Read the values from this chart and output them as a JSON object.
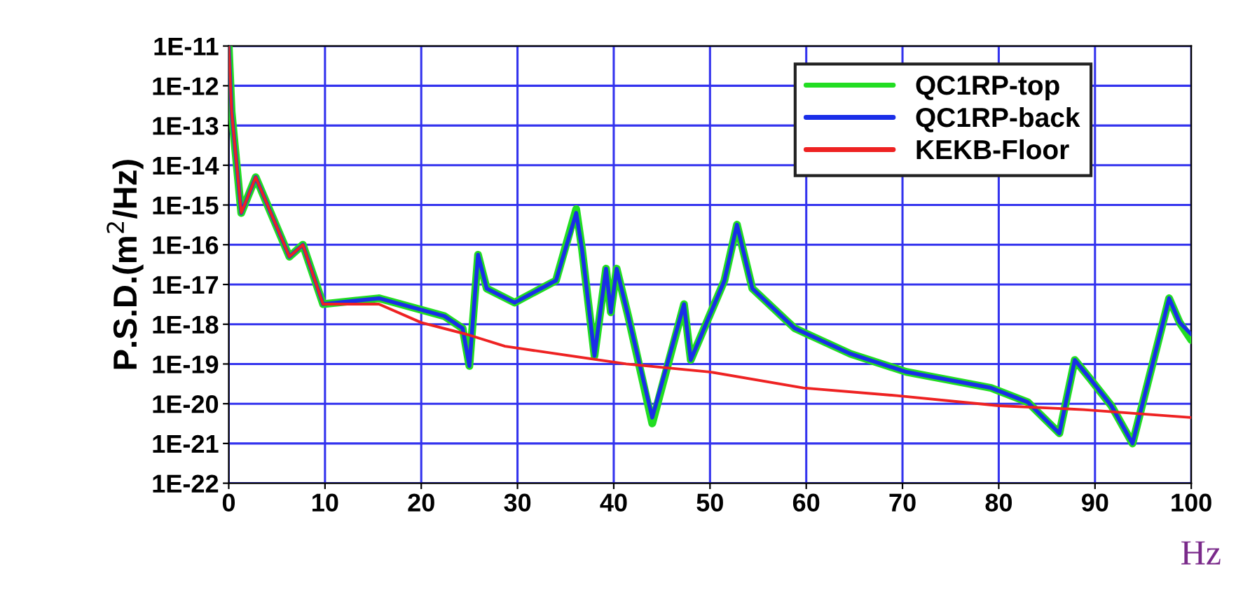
{
  "chart_data": {
    "type": "line",
    "xlabel": "Hz",
    "ylabel": "P.S.D.(m$^{2}$/Hz)",
    "log": "y",
    "xlim": [
      0,
      100
    ],
    "xticks": [
      0,
      10,
      20,
      30,
      40,
      50,
      60,
      70,
      80,
      90,
      100
    ],
    "ylim": [
      1e-22,
      1e-11
    ],
    "yticks": [
      {
        "value": 1e-11,
        "label": "1E-11"
      },
      {
        "value": 1e-12,
        "label": "1E-12"
      },
      {
        "value": 1e-13,
        "label": "1E-13"
      },
      {
        "value": 1e-14,
        "label": "1E-14"
      },
      {
        "value": 1e-15,
        "label": "1E-15"
      },
      {
        "value": 1e-16,
        "label": "1E-16"
      },
      {
        "value": 1e-17,
        "label": "1E-17"
      },
      {
        "value": 1e-18,
        "label": "1E-18"
      },
      {
        "value": 1e-19,
        "label": "1E-19"
      },
      {
        "value": 1e-20,
        "label": "1E-20"
      },
      {
        "value": 1e-21,
        "label": "1E-21"
      },
      {
        "value": 1e-22,
        "label": "1E-22"
      }
    ],
    "grid": true,
    "legend": "top right",
    "marker": "none",
    "line_style": "solid",
    "series": [
      {
        "name": "QC1RP-top",
        "color": "#22dd22",
        "x": [
          0,
          0.3,
          1.3,
          2.8,
          6.3,
          7.7,
          9.8,
          15.6,
          22.4,
          24.3,
          25,
          25.9,
          26.8,
          29.7,
          34,
          36.1,
          36.7,
          38,
          39.2,
          39.7,
          40.3,
          41.5,
          44,
          47.3,
          48,
          51.5,
          52.8,
          54.4,
          58.8,
          64.6,
          70.4,
          79.2,
          83,
          86.3,
          87.9,
          89.4,
          91.7,
          93.9,
          97.7,
          98.8,
          100
        ],
        "values": [
          1e-11,
          2.2e-13,
          6.3e-16,
          5e-15,
          5e-17,
          1e-16,
          3.2e-18,
          4.5e-18,
          1.6e-18,
          7.9e-19,
          8.9e-20,
          5.6e-17,
          7.9e-18,
          3.5e-18,
          1.26e-17,
          7.9e-16,
          7.9e-17,
          1.6e-19,
          2.5e-17,
          2e-18,
          2.5e-17,
          1.6e-18,
          3.2e-21,
          3.2e-18,
          1.26e-19,
          1.26e-17,
          3.2e-16,
          7.9e-18,
          7.9e-19,
          1.8e-19,
          6.3e-20,
          2.5e-20,
          1.1e-20,
          1.8e-21,
          1.26e-19,
          4.5e-20,
          8.9e-21,
          1e-21,
          4.5e-18,
          1.1e-18,
          4e-19
        ]
      },
      {
        "name": "QC1RP-back",
        "color": "#1a2ee8",
        "x": [
          0,
          0.3,
          1.3,
          2.8,
          6.3,
          7.7,
          9.8,
          15.6,
          22.4,
          24.3,
          25,
          25.9,
          26.8,
          29.7,
          34,
          36.1,
          36.7,
          38,
          39.2,
          39.7,
          40.3,
          41.5,
          44,
          47.3,
          48,
          51.5,
          52.8,
          54.4,
          58.8,
          64.6,
          70.4,
          79.2,
          83,
          86.3,
          87.9,
          89.4,
          91.7,
          93.9,
          97.7,
          98.8,
          100
        ],
        "values": [
          1e-11,
          2.2e-13,
          6.3e-16,
          5e-15,
          5e-17,
          1e-16,
          3.2e-18,
          4.5e-18,
          1.6e-18,
          7.9e-19,
          8.9e-20,
          5.6e-17,
          7.9e-18,
          3.5e-18,
          1.26e-17,
          6.3e-16,
          7.9e-17,
          1.6e-19,
          2.5e-17,
          2e-18,
          2.5e-17,
          1.6e-18,
          4.5e-21,
          3.2e-18,
          1.26e-19,
          1.26e-17,
          3.2e-16,
          7.9e-18,
          7.9e-19,
          1.8e-19,
          6.3e-20,
          2.5e-20,
          1.1e-20,
          1.8e-21,
          1.26e-19,
          4.5e-20,
          8.9e-21,
          1e-21,
          4.5e-18,
          1.1e-18,
          5.6e-19
        ]
      },
      {
        "name": "KEKB-Floor",
        "color": "#ee2222",
        "x": [
          0,
          0.3,
          1.3,
          2.8,
          6.3,
          7.7,
          9.8,
          15.6,
          20,
          24.7,
          28.7,
          41.3,
          50,
          59.7,
          69.4,
          80,
          88.8,
          100
        ],
        "values": [
          1e-11,
          2.2e-13,
          6.3e-16,
          5e-15,
          5e-17,
          1e-16,
          3.2e-18,
          3.2e-18,
          1.1e-18,
          5.6e-19,
          2.8e-19,
          1e-19,
          6.3e-20,
          2.5e-20,
          1.6e-20,
          8.9e-21,
          7.1e-21,
          4.5e-21
        ]
      }
    ]
  }
}
